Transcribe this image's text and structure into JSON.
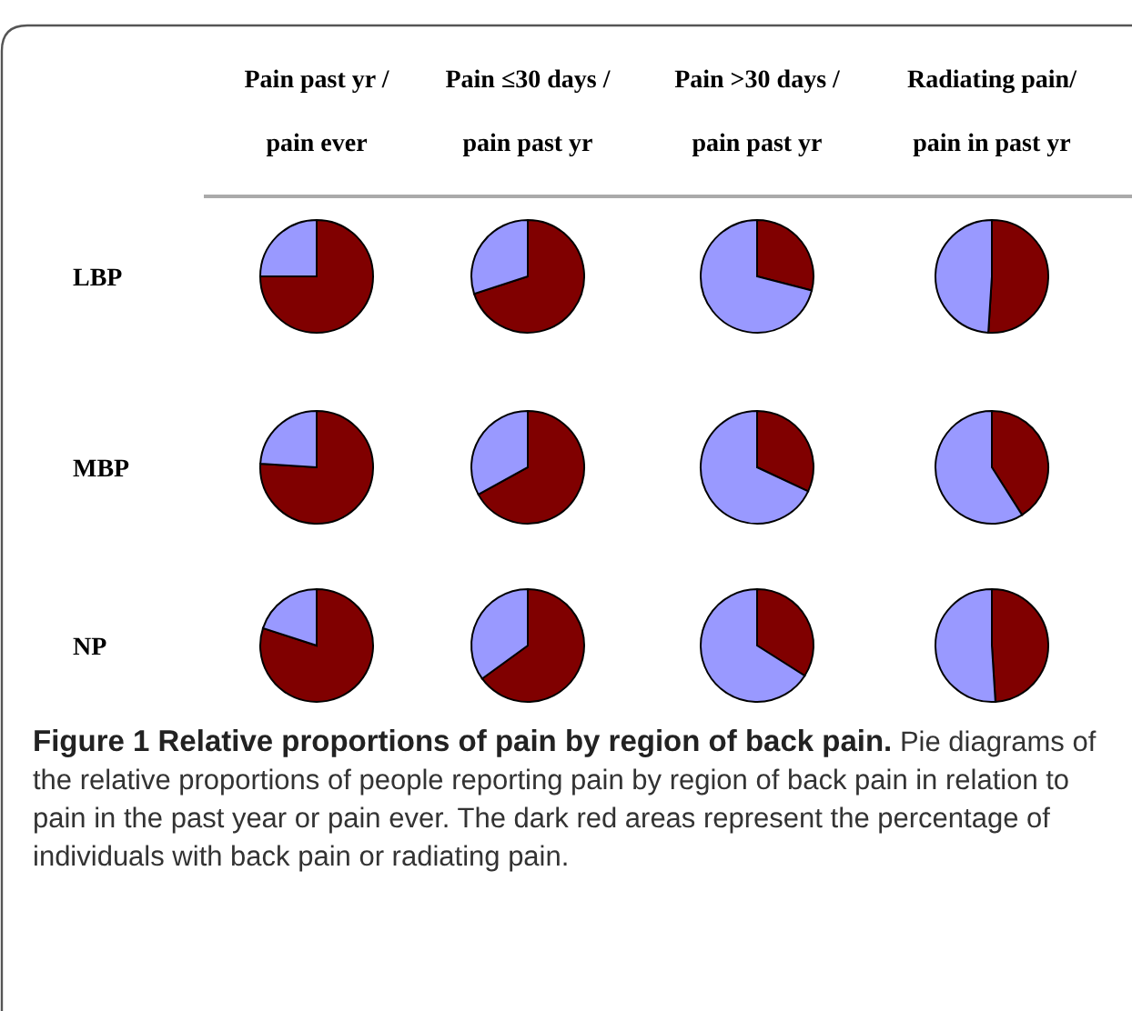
{
  "chart_data": [
    {
      "type": "pie",
      "title": "Pain past yr / pain ever",
      "ylabel": "LBP",
      "categories": [
        null,
        null
      ],
      "values": [
        75,
        25
      ],
      "colors": [
        "#800000",
        "#9999ff"
      ]
    },
    {
      "type": "pie",
      "title": "Pain ≤30 days / pain past yr",
      "categories": [
        null,
        null
      ],
      "values": [
        70,
        30
      ],
      "colors": [
        "#800000",
        "#9999ff"
      ]
    },
    {
      "type": "pie",
      "title": "Pain >30 days / pain past yr",
      "categories": [
        null,
        null
      ],
      "values": [
        29,
        71
      ],
      "colors": [
        "#800000",
        "#9999ff"
      ]
    },
    {
      "type": "pie",
      "title": "Radiating pain/ pain in past yr",
      "categories": [
        null,
        null
      ],
      "values": [
        51,
        49
      ],
      "colors": [
        "#800000",
        "#9999ff"
      ]
    },
    {
      "type": "pie",
      "ylabel": "MBP",
      "categories": [
        null,
        null
      ],
      "values": [
        76,
        24
      ],
      "colors": [
        "#800000",
        "#9999ff"
      ]
    },
    {
      "type": "pie",
      "categories": [
        null,
        null
      ],
      "values": [
        67,
        33
      ],
      "colors": [
        "#800000",
        "#9999ff"
      ]
    },
    {
      "type": "pie",
      "categories": [
        null,
        null
      ],
      "values": [
        32,
        68
      ],
      "colors": [
        "#800000",
        "#9999ff"
      ]
    },
    {
      "type": "pie",
      "categories": [
        null,
        null
      ],
      "values": [
        41,
        59
      ],
      "colors": [
        "#800000",
        "#9999ff"
      ]
    },
    {
      "type": "pie",
      "ylabel": "NP",
      "categories": [
        null,
        null
      ],
      "values": [
        80,
        20
      ],
      "colors": [
        "#800000",
        "#9999ff"
      ]
    },
    {
      "type": "pie",
      "categories": [
        null,
        null
      ],
      "values": [
        65,
        35
      ],
      "colors": [
        "#800000",
        "#9999ff"
      ]
    },
    {
      "type": "pie",
      "categories": [
        null,
        null
      ],
      "values": [
        34,
        66
      ],
      "colors": [
        "#800000",
        "#9999ff"
      ]
    },
    {
      "type": "pie",
      "categories": [
        null,
        null
      ],
      "values": [
        49,
        51
      ],
      "colors": [
        "#800000",
        "#9999ff"
      ]
    },
    {
      "type": "other",
      "title": "Figure 1 Relative proportions of pain by region of back pain.",
      "annotations": [
        "Pie diagrams of the relative proportions of people reporting pain by region of back pain in relation to pain in the past year or pain ever. The dark red areas represent the percentage of individuals with back pain or radiating pain."
      ]
    }
  ]
}
